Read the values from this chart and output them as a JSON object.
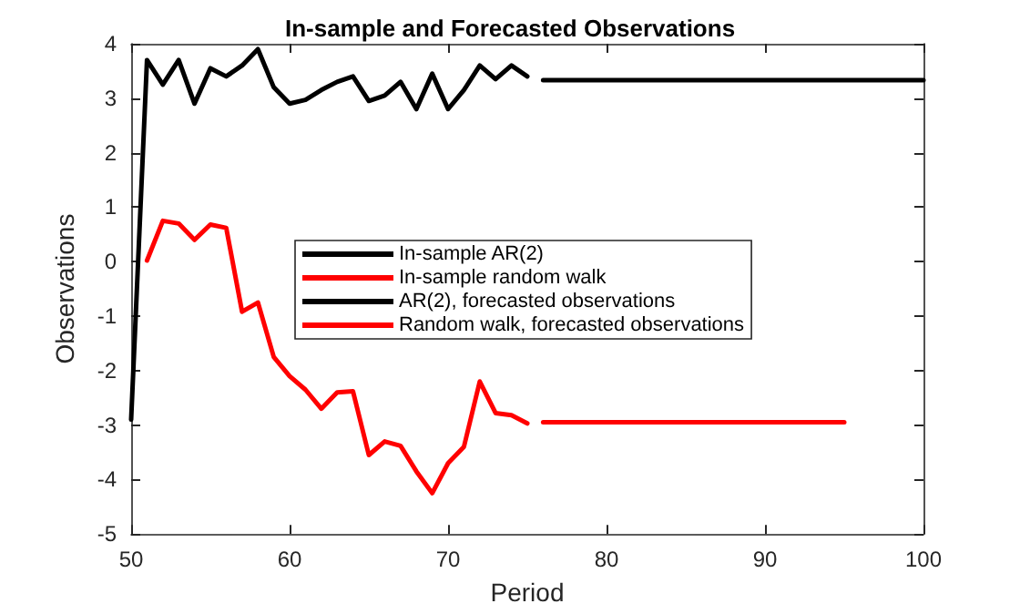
{
  "chart_data": {
    "type": "line",
    "title": "In-sample and Forecasted Observations",
    "xlabel": "Period",
    "ylabel": "Observations",
    "xlim": [
      50,
      100
    ],
    "xticks": [
      50,
      60,
      70,
      80,
      90,
      100
    ],
    "ylim": [
      -5,
      4
    ],
    "yticks": [
      -5,
      -4,
      -3,
      -2,
      -1,
      0,
      1,
      2,
      3,
      4
    ],
    "grid": false,
    "legend": "center",
    "marker": "none",
    "line_style": "solid",
    "series": [
      {
        "name": "In-sample AR(2)",
        "color": "#000000",
        "x": [
          50,
          51,
          52,
          53,
          54,
          55,
          56,
          57,
          58,
          59,
          60,
          61,
          62,
          63,
          64,
          65,
          66,
          67,
          68,
          69,
          70,
          71,
          72,
          73,
          74,
          75
        ],
        "values": [
          -2.9,
          3.7,
          3.25,
          3.7,
          2.9,
          3.55,
          3.4,
          3.6,
          3.9,
          3.2,
          2.9,
          2.97,
          3.15,
          3.3,
          3.4,
          2.95,
          3.05,
          3.3,
          2.8,
          3.45,
          2.8,
          3.15,
          3.6,
          3.35,
          3.6,
          3.4
        ]
      },
      {
        "name": "In-sample random walk",
        "color": "#ff0000",
        "x": [
          51,
          52,
          53,
          54,
          55,
          56,
          57,
          58,
          59,
          60,
          61,
          62,
          63,
          64,
          65,
          66,
          67,
          68,
          69,
          70,
          71,
          72,
          73,
          74,
          75
        ],
        "values": [
          0.02,
          0.75,
          0.7,
          0.4,
          0.68,
          0.62,
          -0.92,
          -0.75,
          -1.75,
          -2.1,
          -2.35,
          -2.7,
          -2.4,
          -2.38,
          -3.55,
          -3.3,
          -3.38,
          -3.85,
          -4.25,
          -3.7,
          -3.4,
          -2.2,
          -2.78,
          -2.82,
          -2.97
        ]
      },
      {
        "name": "AR(2), forecasted observations",
        "color": "#000000",
        "x": [
          76,
          80,
          85,
          90,
          95,
          100
        ],
        "values": [
          3.33,
          3.33,
          3.33,
          3.33,
          3.33,
          3.33
        ]
      },
      {
        "name": "Random walk, forecasted observations",
        "color": "#ff0000",
        "x": [
          76,
          80,
          85,
          90,
          95
        ],
        "values": [
          -2.95,
          -2.95,
          -2.95,
          -2.95,
          -2.95
        ]
      }
    ]
  }
}
